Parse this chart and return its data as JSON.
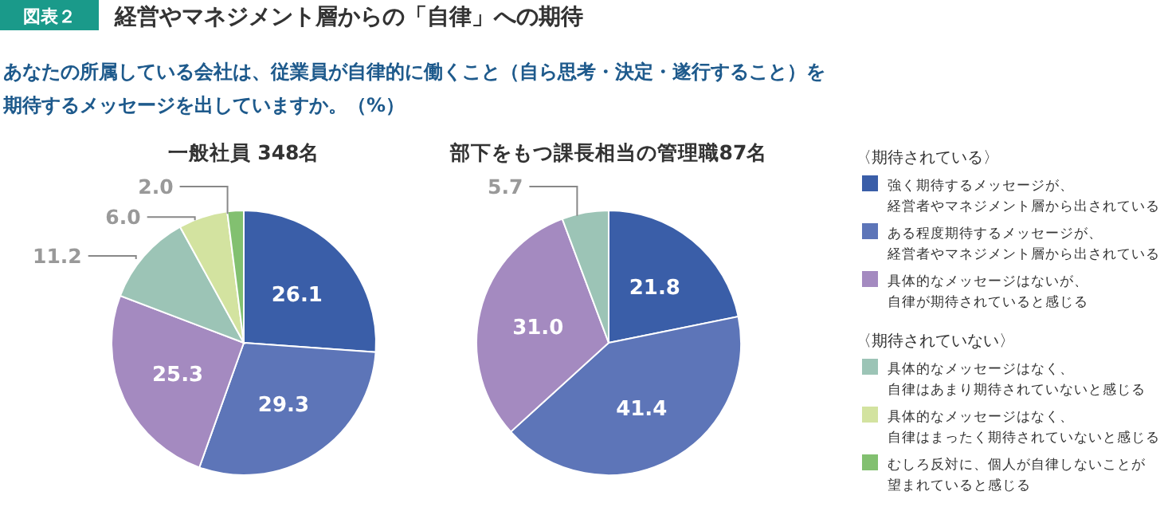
{
  "chart_data": [
    {
      "type": "pie",
      "title": "経営やマネジメント層からの「自律」への期待",
      "subtitle": "あなたの所属している会社は、従業員が自律的に働くこと（自ら思考・決定・遂行すること）を期待するメッセージを出していますか。（%）",
      "annotations": [
        "図表２",
        "一般社員 348名"
      ],
      "categories": [
        null,
        null,
        null,
        null,
        null,
        null
      ],
      "values": [
        26.1,
        29.3,
        25.3,
        11.2,
        6.0,
        2.0
      ],
      "value_labels": [
        "26.1",
        "29.3",
        "25.3",
        "11.2",
        "6.0",
        "2.0"
      ],
      "colors": [
        "#3a5ea8",
        "#5d75b8",
        "#a48ac0",
        "#9cc4b6",
        "#d3e3a0",
        "#82c070"
      ],
      "legend": false
    },
    {
      "type": "pie",
      "annotations": [
        "部下をもつ課長相当の管理職87名",
        "〈期待されている〉",
        "〈期待されていない〉"
      ],
      "categories": [
        "強く期待するメッセージが、経営者やマネジメント層から出されている",
        "ある程度期待するメッセージが、経営者やマネジメント層から出されている",
        "具体的なメッセージはないが、自律が期待されていると感じる",
        "具体的なメッセージはなく、自律はあまり期待されていないと感じる",
        "具体的なメッセージはなく、自律はまったく期待されていないと感じる",
        "むしろ反対に、個人が自律しないことが望まれていると感じる"
      ],
      "values": [
        21.8,
        41.4,
        31.0,
        5.7,
        0,
        0
      ],
      "value_labels": [
        "21.8",
        "41.4",
        "31.0",
        "5.7",
        null,
        null
      ],
      "colors": [
        "#3a5ea8",
        "#5d75b8",
        "#a48ac0",
        "#9cc4b6",
        "#d3e3a0",
        "#82c070"
      ],
      "legend": "right"
    }
  ]
}
